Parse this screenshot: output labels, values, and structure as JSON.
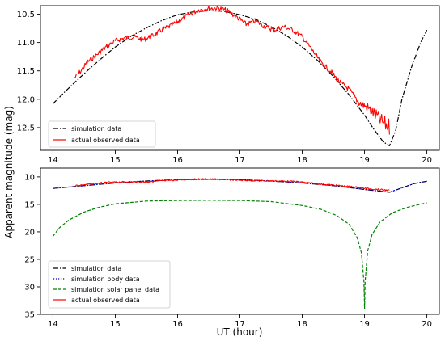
{
  "colors": {
    "simulation": "#000000",
    "body": "#0000cc",
    "solar_panel": "#008000",
    "observed": "#ff0000"
  },
  "chart_data": [
    {
      "type": "line",
      "id": "top",
      "xlabel": "",
      "ylabel": "",
      "xlim": [
        13.8,
        20.2
      ],
      "ylim": [
        12.9,
        10.35
      ],
      "y_inverted": true,
      "xticks": [
        14,
        15,
        16,
        17,
        18,
        19,
        20
      ],
      "yticks": [
        10.5,
        11.0,
        11.5,
        12.0,
        12.5
      ],
      "ytick_labels": [
        "10.5",
        "11.0",
        "11.5",
        "12.0",
        "12.5"
      ],
      "legend_position": "lower-left",
      "series": [
        {
          "name": "simulation data",
          "style": "dashdot",
          "color": "#000000",
          "x": [
            14.0,
            14.2,
            14.4,
            14.6,
            14.8,
            15.0,
            15.25,
            15.5,
            15.75,
            16.0,
            16.25,
            16.5,
            16.75,
            17.0,
            17.25,
            17.5,
            17.75,
            18.0,
            18.25,
            18.5,
            18.75,
            19.0,
            19.15,
            19.3,
            19.4,
            19.5,
            19.6,
            19.75,
            19.9,
            20.0
          ],
          "y": [
            12.08,
            11.86,
            11.65,
            11.45,
            11.26,
            11.08,
            10.89,
            10.74,
            10.61,
            10.51,
            10.46,
            10.44,
            10.45,
            10.51,
            10.59,
            10.72,
            10.88,
            11.08,
            11.32,
            11.6,
            11.92,
            12.28,
            12.53,
            12.75,
            12.82,
            12.55,
            12.0,
            11.45,
            11.0,
            10.78
          ]
        },
        {
          "name": "actual observed data",
          "style": "solid",
          "color": "#ff0000",
          "x": [
            14.35,
            14.45,
            14.55,
            14.7,
            14.85,
            15.0,
            15.15,
            15.3,
            15.45,
            15.6,
            15.75,
            15.9,
            16.05,
            16.2,
            16.35,
            16.5,
            16.65,
            16.8,
            16.95,
            17.1,
            17.25,
            17.4,
            17.55,
            17.7,
            17.85,
            18.0,
            18.15,
            18.3,
            18.45,
            18.6,
            18.75,
            18.9,
            19.05,
            19.2,
            19.3,
            19.4
          ],
          "y": [
            11.62,
            11.5,
            11.35,
            11.22,
            11.08,
            10.97,
            10.92,
            10.9,
            10.95,
            10.88,
            10.78,
            10.7,
            10.6,
            10.5,
            10.42,
            10.4,
            10.39,
            10.44,
            10.55,
            10.68,
            10.62,
            10.72,
            10.78,
            10.72,
            10.78,
            10.9,
            11.12,
            11.35,
            11.5,
            11.7,
            11.82,
            12.05,
            12.15,
            12.3,
            12.42,
            12.48
          ]
        }
      ]
    },
    {
      "type": "line",
      "id": "bottom",
      "xlabel": "UT (hour)",
      "ylabel": "Apparent magnitude (mag)",
      "xlim": [
        13.8,
        20.2
      ],
      "ylim": [
        35.0,
        8.4
      ],
      "y_inverted": true,
      "xticks": [
        14,
        15,
        16,
        17,
        18,
        19,
        20
      ],
      "yticks": [
        10,
        15,
        20,
        25,
        30,
        35
      ],
      "ytick_labels": [
        "10",
        "15",
        "20",
        "25",
        "30",
        "35"
      ],
      "legend_position": "lower-left",
      "series": [
        {
          "name": "simulation data",
          "style": "dashdot",
          "color": "#000000",
          "x": [
            14.0,
            14.5,
            15.0,
            15.5,
            16.0,
            16.5,
            17.0,
            17.5,
            18.0,
            18.5,
            19.0,
            19.4,
            19.6,
            19.8,
            20.0
          ],
          "y": [
            12.1,
            11.6,
            11.1,
            10.75,
            10.5,
            10.45,
            10.5,
            10.75,
            11.1,
            11.6,
            12.3,
            12.8,
            12.0,
            11.2,
            10.8
          ]
        },
        {
          "name": "simulation body data",
          "style": "dotted",
          "color": "#0000cc",
          "x": [
            14.0,
            14.5,
            15.0,
            15.5,
            16.0,
            16.5,
            17.0,
            17.5,
            18.0,
            18.5,
            19.0,
            19.4,
            19.6,
            19.8,
            20.0
          ],
          "y": [
            12.1,
            11.6,
            11.1,
            10.75,
            10.5,
            10.45,
            10.5,
            10.75,
            11.1,
            11.6,
            12.3,
            12.8,
            12.0,
            11.2,
            10.8
          ]
        },
        {
          "name": "simulation solar panel data",
          "style": "dashed",
          "color": "#008000",
          "x": [
            14.0,
            14.1,
            14.25,
            14.5,
            14.75,
            15.0,
            15.5,
            16.0,
            16.5,
            17.0,
            17.5,
            18.0,
            18.3,
            18.55,
            18.75,
            18.88,
            18.95,
            18.99,
            19.0,
            19.01,
            19.05,
            19.12,
            19.25,
            19.45,
            19.7,
            20.0
          ],
          "y": [
            20.8,
            19.3,
            17.9,
            16.4,
            15.5,
            14.9,
            14.4,
            14.3,
            14.25,
            14.3,
            14.5,
            15.2,
            15.9,
            17.0,
            18.6,
            21.0,
            23.8,
            29.0,
            34.0,
            29.0,
            23.5,
            20.5,
            18.2,
            16.5,
            15.5,
            14.7
          ]
        },
        {
          "name": "actual observed data",
          "style": "solid",
          "color": "#ff0000",
          "x": [
            14.35,
            14.6,
            14.9,
            15.2,
            15.5,
            15.8,
            16.1,
            16.4,
            16.7,
            17.0,
            17.3,
            17.6,
            17.9,
            18.2,
            18.5,
            18.8,
            19.1,
            19.4
          ],
          "y": [
            11.6,
            11.3,
            11.0,
            10.9,
            10.9,
            10.7,
            10.5,
            10.4,
            10.45,
            10.6,
            10.7,
            10.75,
            10.85,
            11.2,
            11.5,
            11.8,
            12.2,
            12.45
          ]
        }
      ]
    }
  ]
}
